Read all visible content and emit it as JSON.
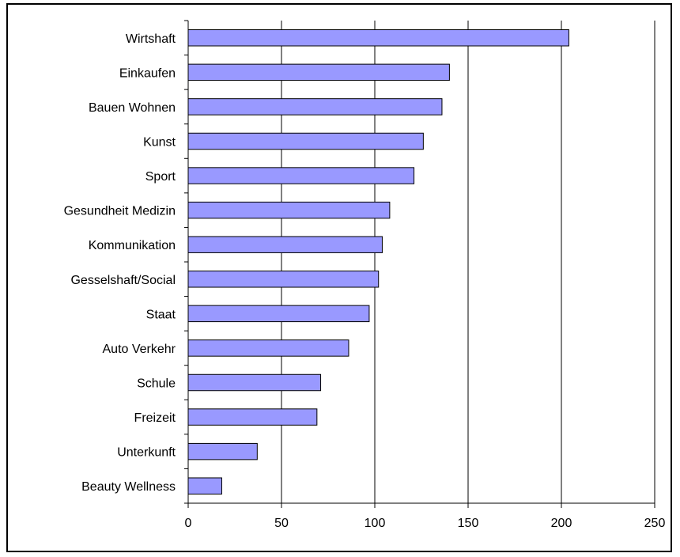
{
  "chart_data": {
    "type": "bar",
    "orientation": "horizontal",
    "title": "",
    "xlabel": "",
    "ylabel": "",
    "categories": [
      "Wirtshaft",
      "Einkaufen",
      "Bauen Wohnen",
      "Kunst",
      "Sport",
      "Gesundheit Medizin",
      "Kommunikation",
      "Gesselshaft/Social",
      "Staat",
      "Auto Verkehr",
      "Schule",
      "Freizeit",
      "Unterkunft",
      "Beauty Wellness"
    ],
    "values": [
      204,
      140,
      136,
      126,
      121,
      108,
      104,
      102,
      97,
      86,
      71,
      69,
      37,
      18
    ],
    "xlim": [
      0,
      250
    ],
    "xticks": [
      0,
      50,
      100,
      150,
      200,
      250
    ],
    "grid": "vertical",
    "legend": "none",
    "colors": {
      "bar_fill": "#9999ff",
      "bar_stroke": "#000000",
      "grid": "#000000",
      "frame": "#000000"
    }
  }
}
